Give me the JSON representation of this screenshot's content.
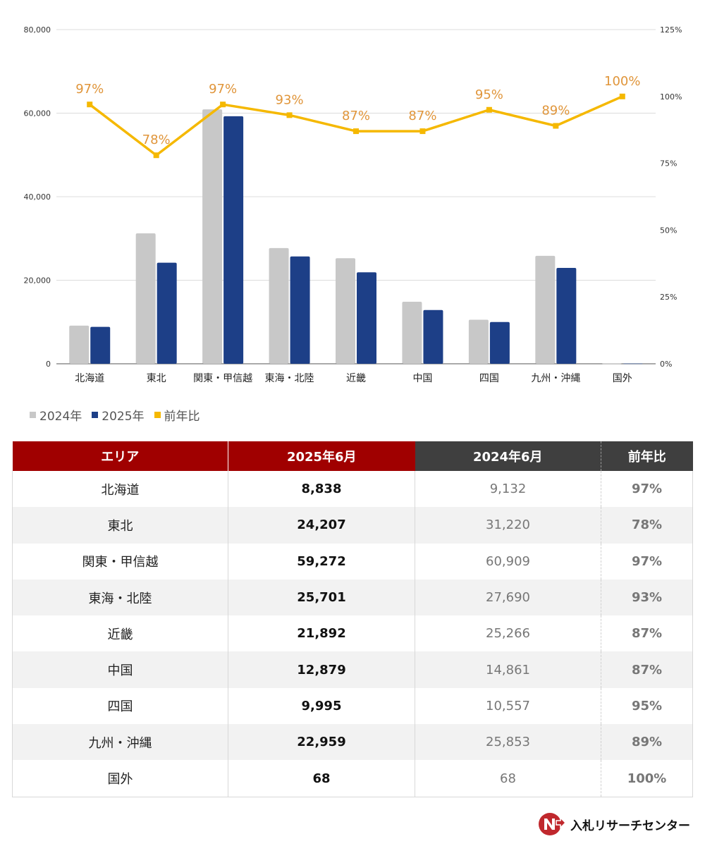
{
  "chart_data": {
    "type": "bar",
    "categories": [
      "北海道",
      "東北",
      "関東・甲信越",
      "東海・北陸",
      "近畿",
      "中国",
      "四国",
      "九州・沖縄",
      "国外"
    ],
    "series": [
      {
        "name": "2024年",
        "type": "bar",
        "axis": "left",
        "color": "#c8c8c8",
        "values": [
          9132,
          31220,
          60909,
          27690,
          25266,
          14861,
          10557,
          25853,
          68
        ]
      },
      {
        "name": "2025年",
        "type": "bar",
        "axis": "left",
        "color": "#1d3f87",
        "values": [
          8838,
          24207,
          59272,
          25701,
          21892,
          12879,
          9995,
          22959,
          68
        ]
      },
      {
        "name": "前年比",
        "type": "line",
        "axis": "right",
        "color": "#f5b800",
        "values": [
          97,
          78,
          97,
          93,
          87,
          87,
          95,
          89,
          100
        ],
        "labels": [
          "97%",
          "78%",
          "97%",
          "93%",
          "87%",
          "87%",
          "95%",
          "89%",
          "100%"
        ]
      }
    ],
    "label_color": "#e0953a",
    "ylim": [
      0,
      80000
    ],
    "yticks": [
      "0",
      "20,000",
      "40,000",
      "60,000",
      "80,000"
    ],
    "y2lim": [
      0,
      125
    ],
    "y2ticks": [
      "0%",
      "25%",
      "50%",
      "75%",
      "100%",
      "125%"
    ],
    "grid": true,
    "legend": "bottom-left"
  },
  "table": {
    "headers": [
      "エリア",
      "2025年6月",
      "2024年6月",
      "前年比"
    ],
    "rows": [
      [
        "北海道",
        "8,838",
        "9,132",
        "97%"
      ],
      [
        "東北",
        "24,207",
        "31,220",
        "78%"
      ],
      [
        "関東・甲信越",
        "59,272",
        "60,909",
        "97%"
      ],
      [
        "東海・北陸",
        "25,701",
        "27,690",
        "93%"
      ],
      [
        "近畿",
        "21,892",
        "25,266",
        "87%"
      ],
      [
        "中国",
        "12,879",
        "14,861",
        "87%"
      ],
      [
        "四国",
        "9,995",
        "10,557",
        "95%"
      ],
      [
        "九州・沖縄",
        "22,959",
        "25,853",
        "89%"
      ],
      [
        "国外",
        "68",
        "68",
        "100%"
      ]
    ]
  },
  "logo": {
    "text": "入札リサーチセンター",
    "icon": "n-arrow-logo-icon",
    "color": "#c0282d"
  }
}
